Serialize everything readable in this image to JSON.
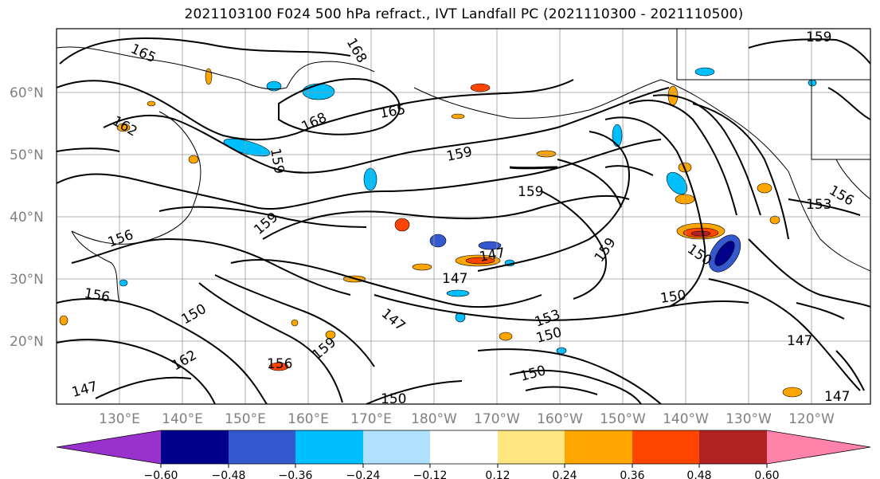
{
  "title": "2021103100 F024 500 hPa refract., IVT Landfall PC (2021110300 - 2021110500)",
  "lat_labels": [
    "60°N",
    "50°N",
    "40°N",
    "30°N",
    "20°N"
  ],
  "lon_labels": [
    "130°E",
    "140°E",
    "150°E",
    "160°E",
    "170°E",
    "180°W",
    "170°W",
    "160°W",
    "150°W",
    "140°W",
    "130°W",
    "120°W"
  ],
  "contour_labels": [
    {
      "text": "165"
    },
    {
      "text": "168"
    },
    {
      "text": "165"
    },
    {
      "text": "162"
    },
    {
      "text": "159"
    },
    {
      "text": "168"
    },
    {
      "text": "159"
    },
    {
      "text": "159"
    },
    {
      "text": "159"
    },
    {
      "text": "156"
    },
    {
      "text": "153"
    },
    {
      "text": "159"
    },
    {
      "text": "147"
    },
    {
      "text": "147"
    },
    {
      "text": "159"
    },
    {
      "text": "150"
    },
    {
      "text": "150"
    },
    {
      "text": "156"
    },
    {
      "text": "156"
    },
    {
      "text": "150"
    },
    {
      "text": "147"
    },
    {
      "text": "153"
    },
    {
      "text": "150"
    },
    {
      "text": "147"
    },
    {
      "text": "159"
    },
    {
      "text": "156"
    },
    {
      "text": "162"
    },
    {
      "text": "150"
    },
    {
      "text": "147"
    },
    {
      "text": "150"
    },
    {
      "text": "147"
    }
  ],
  "colorbar": {
    "ticks": [
      "−0.60",
      "−0.48",
      "−0.36",
      "−0.24",
      "−0.12",
      "0.12",
      "0.24",
      "0.36",
      "0.48",
      "0.60"
    ],
    "colors": [
      "#9932cc",
      "#00008b",
      "#3459cf",
      "#00bfff",
      "#b0e2ff",
      "#ffffff",
      "#ffe680",
      "#ffa500",
      "#ff4500",
      "#b22222",
      "#ff82ab"
    ]
  }
}
